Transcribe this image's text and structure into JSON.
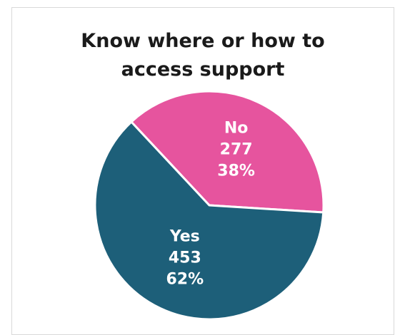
{
  "chart_data": {
    "type": "pie",
    "title_lines": [
      "Know where or how to",
      "access support"
    ],
    "slices": [
      {
        "label": "Yes",
        "value": 453,
        "percent": "62%",
        "color": "#1d5f79"
      },
      {
        "label": "No",
        "value": 277,
        "percent": "38%",
        "color": "#e6549e"
      }
    ],
    "legend": "none"
  }
}
